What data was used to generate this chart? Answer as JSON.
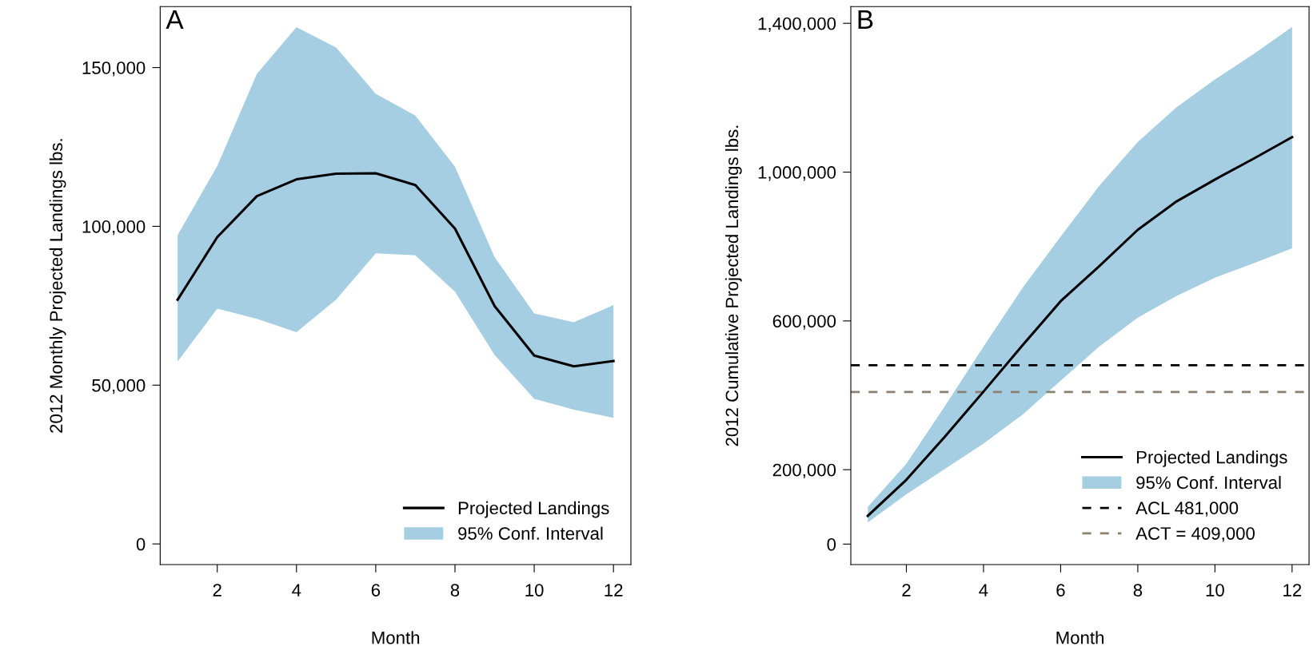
{
  "chart_data": [
    {
      "type": "line",
      "ylabel": "2012 Monthly Projected Landings lbs.",
      "xlabel": "Month",
      "annotations": [
        "A"
      ],
      "x": [
        1,
        2,
        3,
        4,
        5,
        6,
        7,
        8,
        9,
        10,
        11,
        12
      ],
      "series": [
        {
          "name": "Projected Landings",
          "color": "#000000",
          "values": [
            76900,
            96600,
            109500,
            114800,
            116600,
            116700,
            113000,
            99300,
            74900,
            59300,
            55900,
            57600
          ],
          "lower": [
            57400,
            74100,
            70900,
            66700,
            76900,
            91500,
            90900,
            79400,
            59500,
            45700,
            42300,
            39700
          ],
          "upper": [
            97200,
            119000,
            148000,
            162700,
            156300,
            141700,
            134900,
            118800,
            90300,
            72600,
            69800,
            75200
          ]
        },
        {
          "type": "area",
          "name": "95% Conf. Interval",
          "color": "#a6cee3",
          "values": [
            null,
            null,
            null,
            null,
            null,
            null,
            null,
            null,
            null,
            null,
            null,
            null
          ]
        }
      ],
      "xlim": [
        0.56,
        12.44
      ],
      "xticks": [
        2,
        4,
        6,
        8,
        10,
        12
      ],
      "ylim": [
        -6500,
        169200
      ],
      "yticks": [
        0,
        {
          "value": 50000,
          "label": "50,000"
        },
        {
          "value": 100000,
          "label": "100,000"
        },
        {
          "value": 150000,
          "label": "150,000"
        }
      ],
      "grid": false,
      "legend": "bottom right",
      "line_style": "solid",
      "marker": "none"
    },
    {
      "type": "line",
      "ylabel": "2012 Cumulative Projected Landings lbs.",
      "xlabel": "Month",
      "annotations": [
        "B"
      ],
      "x": [
        1,
        2,
        3,
        4,
        5,
        6,
        7,
        8,
        9,
        10,
        11,
        12
      ],
      "series": [
        {
          "name": "Projected Landings",
          "color": "#000000",
          "values": [
            76000,
            173000,
            289000,
            410000,
            533000,
            653000,
            747000,
            845000,
            921000,
            980000,
            1036000,
            1094000
          ],
          "lower": [
            58000,
            134000,
            202000,
            270000,
            347000,
            439000,
            531000,
            609000,
            667000,
            716000,
            755000,
            795000
          ],
          "upper": [
            100000,
            216000,
            371000,
            531000,
            687000,
            827000,
            963000,
            1081000,
            1174000,
            1249000,
            1317000,
            1390000
          ]
        },
        {
          "type": "area",
          "name": "95% Conf. Interval",
          "color": "#a6cee3",
          "values": [
            null,
            null,
            null,
            null,
            null,
            null,
            null,
            null,
            null,
            null,
            null,
            null
          ]
        }
      ],
      "ref_lines": [
        {
          "axis": "y",
          "value": 481000,
          "label": "ACL 481,000",
          "color": "#000000",
          "line_style": "dashed"
        },
        {
          "axis": "y",
          "value": 409000,
          "label": "ACT = 409,000",
          "color": "#8c8070",
          "line_style": "dashed"
        }
      ],
      "xlim": [
        0.56,
        12.44
      ],
      "xticks": [
        2,
        4,
        6,
        8,
        10,
        12
      ],
      "ylim": [
        -55000,
        1445000
      ],
      "yticks": [
        0,
        {
          "value": 200000,
          "label": "200,000"
        },
        {
          "value": 600000,
          "label": "600,000"
        },
        {
          "value": 1000000,
          "label": "1,000,000"
        },
        {
          "value": 1400000,
          "label": "1,400,000"
        }
      ],
      "grid": false,
      "legend": "bottom right",
      "line_style": "solid",
      "marker": "none"
    }
  ]
}
